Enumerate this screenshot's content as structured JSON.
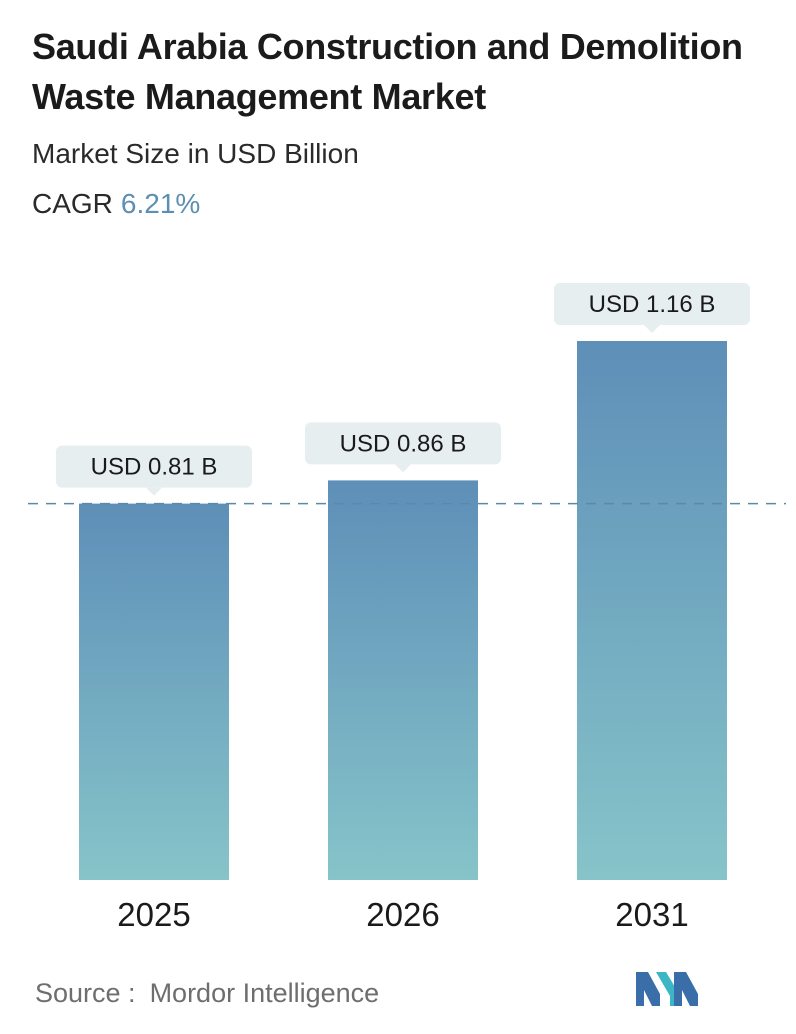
{
  "header": {
    "title": "Saudi Arabia Construction and Demolition Waste Management Market",
    "subtitle": "Market Size in USD Billion",
    "cagr_label": "CAGR",
    "cagr_value": "6.21%"
  },
  "chart_data": {
    "type": "bar",
    "categories": [
      "2025",
      "2026",
      "2031"
    ],
    "values": [
      0.81,
      0.86,
      1.16
    ],
    "data_labels": [
      "USD 0.81 B",
      "USD 0.86 B",
      "USD 1.16 B"
    ],
    "reference_line": 0.81,
    "grid": false,
    "colors": {
      "bar_top": "#5e8fb8",
      "bar_bottom": "#86c4c9",
      "label_bg": "#e7eeef",
      "reference_line": "#5b8aa8"
    }
  },
  "footer": {
    "source_label": "Source :",
    "source_name": "Mordor Intelligence",
    "logo_icon": "mordor-intelligence-logo"
  }
}
